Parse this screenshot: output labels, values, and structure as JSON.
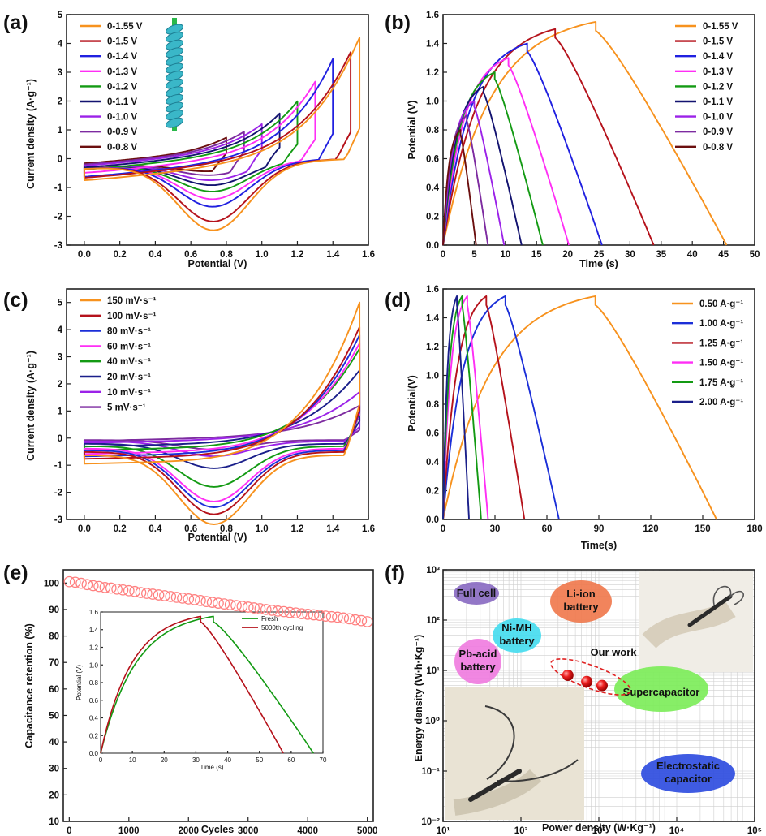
{
  "colors": {
    "orange": "#f7921e",
    "red": "#b5121b",
    "blue": "#2020e0",
    "magenta": "#ff2ef5",
    "green": "#139a13",
    "navy": "#131370",
    "violet": "#9b22e8",
    "purple": "#7d2ba0",
    "maroon": "#6b0f0f",
    "blue2": "#1b2fd8",
    "navy2": "#1a1f8a"
  },
  "chart_data": [
    {
      "id": "a",
      "type": "line",
      "panel_label": "(a)",
      "xlabel": "Potential (V)",
      "ylabel": "Current density (A·g⁻¹)",
      "xlim": [
        -0.1,
        1.6
      ],
      "ylim": [
        -3,
        5
      ],
      "xticks": [
        0.0,
        0.2,
        0.4,
        0.6,
        0.8,
        1.0,
        1.2,
        1.4,
        1.6
      ],
      "yticks": [
        -3,
        -2,
        -1,
        0,
        1,
        2,
        3,
        4,
        5
      ],
      "xtick_labels": [
        "0.0",
        "0.2",
        "0.4",
        "0.6",
        "0.8",
        "1.0",
        "1.2",
        "1.4",
        "1.6"
      ],
      "ytick_labels": [
        "-3",
        "-2",
        "-1",
        "0",
        "1",
        "2",
        "3",
        "4",
        "5"
      ],
      "legend_position": "top-left",
      "series": [
        {
          "name": "0-1.55 V",
          "color": "orange",
          "vmax": 1.55,
          "ipeak": 4.2,
          "cmin": -2.3
        },
        {
          "name": "0-1.5 V",
          "color": "red",
          "vmax": 1.5,
          "ipeak": 3.7,
          "cmin": -2.0
        },
        {
          "name": "0-1.4 V",
          "color": "blue",
          "vmax": 1.4,
          "ipeak": 3.5,
          "cmin": -1.5
        },
        {
          "name": "0-1.3 V",
          "color": "magenta",
          "vmax": 1.3,
          "ipeak": 2.75,
          "cmin": -1.25
        },
        {
          "name": "0-1.2 V",
          "color": "green",
          "vmax": 1.2,
          "ipeak": 2.1,
          "cmin": -1.0
        },
        {
          "name": "0-1.1 V",
          "color": "navy",
          "vmax": 1.1,
          "ipeak": 1.7,
          "cmin": -0.8
        },
        {
          "name": "0-1.0 V",
          "color": "violet",
          "vmax": 1.0,
          "ipeak": 1.35,
          "cmin": -0.65
        },
        {
          "name": "0-0.9 V",
          "color": "purple",
          "vmax": 0.9,
          "ipeak": 1.1,
          "cmin": -0.5
        },
        {
          "name": "0-0.8 V",
          "color": "maroon",
          "vmax": 0.8,
          "ipeak": 0.9,
          "cmin": -0.4
        }
      ]
    },
    {
      "id": "b",
      "type": "line",
      "panel_label": "(b)",
      "xlabel": "Time (s)",
      "ylabel": "Potential (V)",
      "xlim": [
        0,
        50
      ],
      "ylim": [
        0,
        1.6
      ],
      "xticks": [
        0,
        5,
        10,
        15,
        20,
        25,
        30,
        35,
        40,
        45,
        50
      ],
      "yticks": [
        0.0,
        0.2,
        0.4,
        0.6,
        0.8,
        1.0,
        1.2,
        1.4,
        1.6
      ],
      "xtick_labels": [
        "0",
        "5",
        "10",
        "15",
        "20",
        "25",
        "30",
        "35",
        "40",
        "45",
        "50"
      ],
      "ytick_labels": [
        "0.0",
        "0.2",
        "0.4",
        "0.6",
        "0.8",
        "1.0",
        "1.2",
        "1.4",
        "1.6"
      ],
      "legend_position": "top-right",
      "series": [
        {
          "name": "0-1.55 V",
          "color": "orange",
          "vmax": 1.55,
          "t_peak": 24.5,
          "t_end": 45.5
        },
        {
          "name": "0-1.5 V",
          "color": "red",
          "vmax": 1.5,
          "t_peak": 18.0,
          "t_end": 33.8
        },
        {
          "name": "0-1.4 V",
          "color": "blue",
          "vmax": 1.4,
          "t_peak": 13.5,
          "t_end": 25.5
        },
        {
          "name": "0-1.3 V",
          "color": "magenta",
          "vmax": 1.3,
          "t_peak": 10.5,
          "t_end": 20.2
        },
        {
          "name": "0-1.2 V",
          "color": "green",
          "vmax": 1.2,
          "t_peak": 8.3,
          "t_end": 16.0
        },
        {
          "name": "0-1.1 V",
          "color": "navy",
          "vmax": 1.1,
          "t_peak": 6.5,
          "t_end": 12.6
        },
        {
          "name": "0-1.0 V",
          "color": "violet",
          "vmax": 1.0,
          "t_peak": 5.0,
          "t_end": 9.8
        },
        {
          "name": "0-0.9 V",
          "color": "purple",
          "vmax": 0.9,
          "t_peak": 3.8,
          "t_end": 7.2
        },
        {
          "name": "0-0.8 V",
          "color": "maroon",
          "vmax": 0.8,
          "t_peak": 2.8,
          "t_end": 5.3
        }
      ]
    },
    {
      "id": "c",
      "type": "line",
      "panel_label": "(c)",
      "xlabel": "Potential (V)",
      "ylabel": "Current density (A·g⁻¹)",
      "xlim": [
        -0.1,
        1.6
      ],
      "ylim": [
        -3,
        5.5
      ],
      "xticks": [
        0.0,
        0.2,
        0.4,
        0.6,
        0.8,
        1.0,
        1.2,
        1.4,
        1.6
      ],
      "yticks": [
        -3,
        -2,
        -1,
        0,
        1,
        2,
        3,
        4,
        5
      ],
      "xtick_labels": [
        "0.0",
        "0.2",
        "0.4",
        "0.6",
        "0.8",
        "1.0",
        "1.2",
        "1.4",
        "1.6"
      ],
      "ytick_labels": [
        "-3",
        "-2",
        "-1",
        "0",
        "1",
        "2",
        "3",
        "4",
        "5"
      ],
      "legend_position": "top-left",
      "series": [
        {
          "name": "150 mV·s⁻¹",
          "color": "orange",
          "ipeak": 5.0,
          "cmin": -2.55,
          "i0": -1.05
        },
        {
          "name": "100 mV·s⁻¹",
          "color": "red",
          "ipeak": 4.1,
          "cmin": -2.3,
          "i0": -0.85
        },
        {
          "name": "80 mV·s⁻¹",
          "color": "blue2",
          "ipeak": 3.8,
          "cmin": -2.1,
          "i0": -0.75
        },
        {
          "name": "60 mV·s⁻¹",
          "color": "magenta",
          "ipeak": 3.5,
          "cmin": -1.95,
          "i0": -0.65
        },
        {
          "name": "40 mV·s⁻¹",
          "color": "green",
          "ipeak": 3.3,
          "cmin": -1.5,
          "i0": -0.5
        },
        {
          "name": "20 mV·s⁻¹",
          "color": "navy2",
          "ipeak": 2.5,
          "cmin": -0.9,
          "i0": -0.35
        },
        {
          "name": "10 mV·s⁻¹",
          "color": "violet",
          "ipeak": 1.7,
          "cmin": -0.55,
          "i0": -0.2
        },
        {
          "name": "5 mV·s⁻¹",
          "color": "purple",
          "ipeak": 1.2,
          "cmin": -0.35,
          "i0": -0.12
        }
      ]
    },
    {
      "id": "d",
      "type": "line",
      "panel_label": "(d)",
      "xlabel": "Time(s)",
      "ylabel": "Potential(V)",
      "xlim": [
        0,
        180
      ],
      "ylim": [
        0,
        1.6
      ],
      "xticks": [
        0,
        30,
        60,
        90,
        120,
        150,
        180
      ],
      "yticks": [
        0.0,
        0.2,
        0.4,
        0.6,
        0.8,
        1.0,
        1.2,
        1.4,
        1.6
      ],
      "xtick_labels": [
        "0",
        "30",
        "60",
        "90",
        "120",
        "150",
        "180"
      ],
      "ytick_labels": [
        "0.0",
        "0.2",
        "0.4",
        "0.6",
        "0.8",
        "1.0",
        "1.2",
        "1.4",
        "1.6"
      ],
      "legend_position": "top-right",
      "series": [
        {
          "name": "0.50 A·g⁻¹",
          "color": "orange",
          "vmax": 1.55,
          "t_peak": 88,
          "t_end": 158
        },
        {
          "name": "1.00 A·g⁻¹",
          "color": "blue2",
          "vmax": 1.55,
          "t_peak": 36,
          "t_end": 67
        },
        {
          "name": "1.25 A·g⁻¹",
          "color": "red",
          "vmax": 1.55,
          "t_peak": 25,
          "t_end": 47
        },
        {
          "name": "1.50 A·g⁻¹",
          "color": "magenta",
          "vmax": 1.55,
          "t_peak": 14,
          "t_end": 26
        },
        {
          "name": "1.75 A·g⁻¹",
          "color": "green",
          "vmax": 1.55,
          "t_peak": 11,
          "t_end": 22
        },
        {
          "name": "2.00 A·g⁻¹",
          "color": "navy2",
          "vmax": 1.55,
          "t_peak": 8,
          "t_end": 15
        }
      ]
    },
    {
      "id": "e",
      "type": "scatter",
      "panel_label": "(e)",
      "xlabel": "Cycles",
      "ylabel": "Capacitance retention (%)",
      "xlim": [
        -100,
        5100
      ],
      "ylim": [
        10,
        105
      ],
      "xticks": [
        0,
        1000,
        2000,
        3000,
        4000,
        5000
      ],
      "yticks": [
        10,
        20,
        30,
        40,
        50,
        60,
        70,
        80,
        90,
        100
      ],
      "xtick_labels": [
        "0",
        "1000",
        "2000",
        "3000",
        "4000",
        "5000"
      ],
      "ytick_labels": [
        "10",
        "20",
        "30",
        "40",
        "50",
        "60",
        "70",
        "80",
        "90",
        "100"
      ],
      "marker_color": "#ff8080",
      "x": [
        0,
        100,
        200,
        300,
        400,
        500,
        600,
        700,
        800,
        900,
        1000,
        1100,
        1200,
        1300,
        1400,
        1500,
        1600,
        1700,
        1800,
        1900,
        2000,
        2100,
        2200,
        2300,
        2400,
        2500,
        2600,
        2700,
        2800,
        2900,
        3000,
        3100,
        3200,
        3300,
        3400,
        3500,
        3600,
        3700,
        3800,
        3900,
        4000,
        4100,
        4200,
        4300,
        4400,
        4500,
        4600,
        4700,
        4800,
        4900,
        5000
      ],
      "y": [
        100.5,
        100.3,
        99.9,
        99.4,
        99.0,
        98.7,
        98.3,
        98.1,
        97.7,
        97.4,
        97.1,
        96.8,
        96.4,
        96.1,
        95.8,
        95.5,
        95.2,
        94.9,
        94.6,
        94.3,
        94.0,
        93.7,
        93.4,
        93.0,
        92.7,
        92.4,
        92.1,
        91.8,
        91.5,
        91.2,
        90.9,
        90.6,
        90.3,
        90.0,
        89.7,
        89.4,
        89.2,
        88.9,
        88.7,
        88.4,
        88.2,
        88.0,
        87.8,
        87.5,
        87.3,
        87.1,
        86.8,
        86.5,
        86.1,
        85.8,
        85.4
      ],
      "inset": {
        "type": "line",
        "xlabel": "Time (s)",
        "ylabel": "Potential (V)",
        "xlim": [
          0,
          70
        ],
        "ylim": [
          0,
          1.6
        ],
        "xticks": [
          0,
          10,
          20,
          30,
          40,
          50,
          60,
          70
        ],
        "yticks": [
          0.0,
          0.2,
          0.4,
          0.6,
          0.8,
          1.0,
          1.2,
          1.4,
          1.6
        ],
        "xtick_labels": [
          "0",
          "10",
          "20",
          "30",
          "40",
          "50",
          "60",
          "70"
        ],
        "ytick_labels": [
          "0.0",
          "0.2",
          "0.4",
          "0.6",
          "0.8",
          "1.0",
          "1.2",
          "1.4",
          "1.6"
        ],
        "series": [
          {
            "name": "Fresh",
            "color": "green",
            "vmax": 1.55,
            "t_peak": 35.5,
            "t_end": 67
          },
          {
            "name": "5000th cycling",
            "color": "red",
            "vmax": 1.55,
            "t_peak": 31.5,
            "t_end": 57.5
          }
        ]
      }
    },
    {
      "id": "f",
      "type": "scatter",
      "panel_label": "(f)",
      "xlabel": "Power density (W·Kg⁻¹)",
      "ylabel": "Energy density (W·h·Kg⁻¹)",
      "xscale": "log",
      "yscale": "log",
      "xlim": [
        10,
        100000
      ],
      "ylim": [
        0.01,
        1000
      ],
      "xtick_labels": [
        "10¹",
        "10²",
        "10³",
        "10⁴",
        "10⁵"
      ],
      "ytick_labels": [
        "10⁻²",
        "10⁻¹",
        "10⁰",
        "10¹",
        "10²",
        "10³"
      ],
      "grid": true,
      "regions": [
        {
          "label": "Full cell",
          "color": "#8a6bc2"
        },
        {
          "label": "Li-ion battery",
          "color": "#f07a4e"
        },
        {
          "label": "Ni-MH battery",
          "color": "#46dcef"
        },
        {
          "label": "Pb-acid battery",
          "color": "#f07de0"
        },
        {
          "label": "Supercapacitor",
          "color": "#7ded5a"
        },
        {
          "label": "Electrostatic capacitor",
          "color": "#2f4de0"
        }
      ],
      "our_work_label": "Our work",
      "points": [
        {
          "x": 400,
          "y": 8.0
        },
        {
          "x": 700,
          "y": 6.0
        },
        {
          "x": 1100,
          "y": 5.0
        }
      ],
      "point_color": "#e82020"
    }
  ]
}
